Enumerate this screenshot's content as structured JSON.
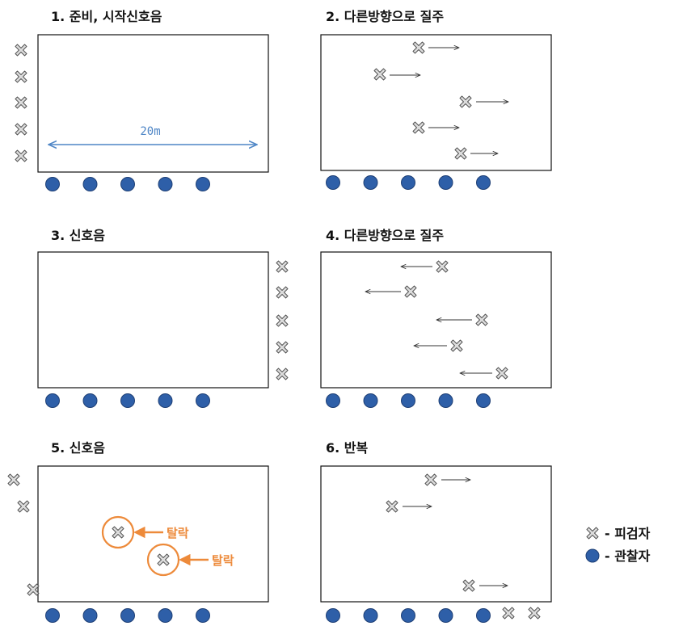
{
  "panels": [
    {
      "title": "1. 준비, 시작신호음",
      "distance_label": "20m"
    },
    {
      "title": "2. 다른방향으로 질주"
    },
    {
      "title": "3. 신호음"
    },
    {
      "title": "4. 다른방향으로 질주"
    },
    {
      "title": "5. 신호음",
      "eliminated_label": "탈락"
    },
    {
      "title": "6. 반복"
    }
  ],
  "legend": {
    "subject_label": "- 피검자",
    "observer_label": "- 관찰자"
  },
  "colors": {
    "observer_fill": "#2e5fa8",
    "subject_fill": "#d9d9d9",
    "distance_arrow": "#4f86c6",
    "eliminated": "#ed8a3a"
  }
}
